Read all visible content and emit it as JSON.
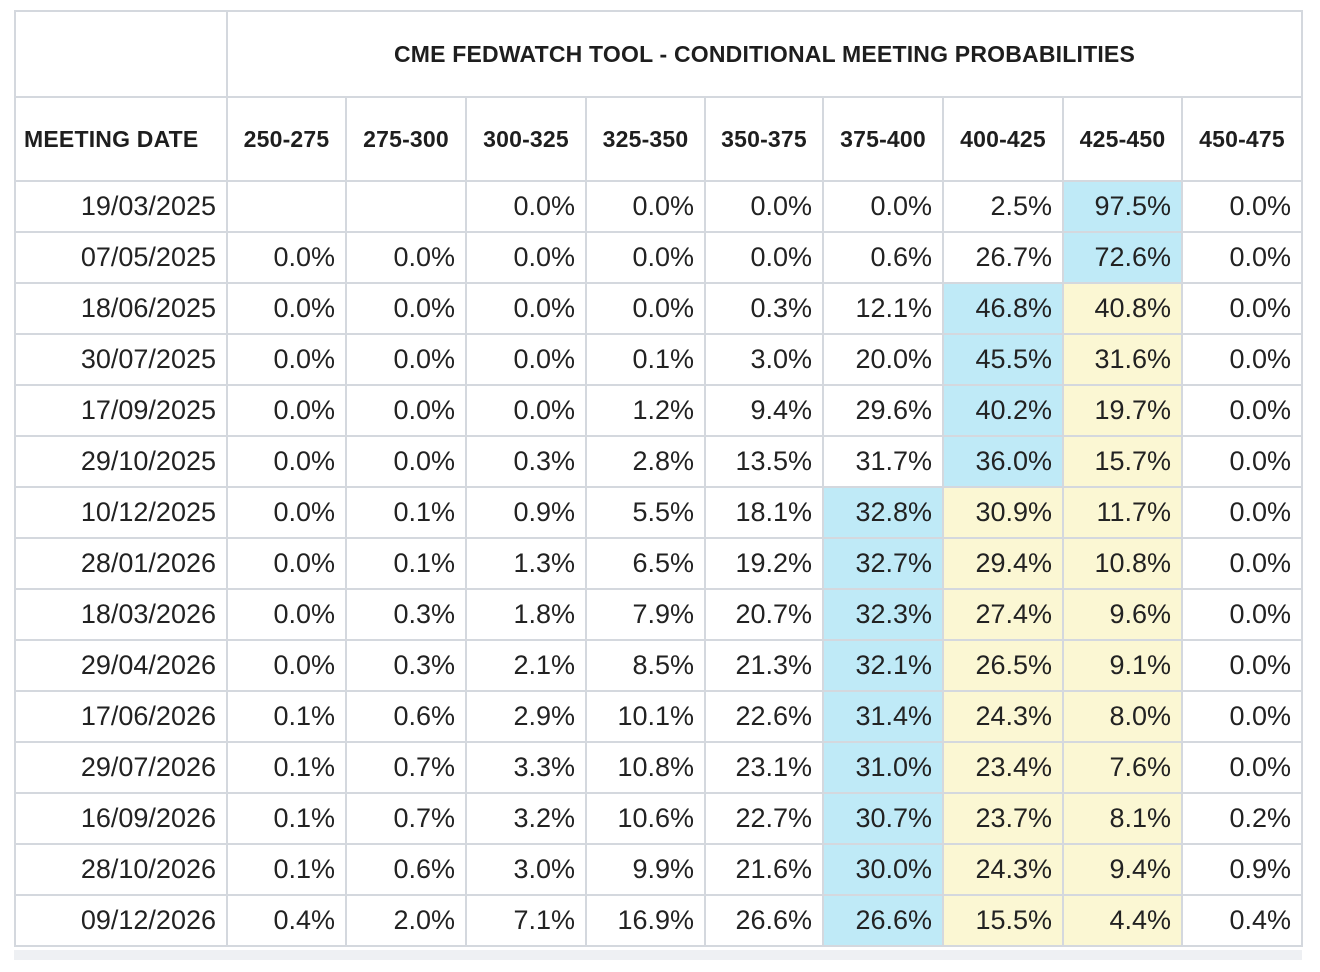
{
  "title": "CME FEDWATCH TOOL - CONDITIONAL MEETING PROBABILITIES",
  "date_header": "MEETING DATE",
  "ranges": [
    "250-275",
    "275-300",
    "300-325",
    "325-350",
    "350-375",
    "375-400",
    "400-425",
    "425-450",
    "450-475"
  ],
  "highlight_colors": {
    "blue": "#bfeaf7",
    "yellow": "#fbf7d3"
  },
  "rows": [
    {
      "date": "19/03/2025",
      "values": [
        "",
        "",
        "0.0%",
        "0.0%",
        "0.0%",
        "0.0%",
        "2.5%",
        "97.5%",
        "0.0%"
      ],
      "hl": [
        "",
        "",
        "",
        "",
        "",
        "",
        "",
        "blue",
        ""
      ]
    },
    {
      "date": "07/05/2025",
      "values": [
        "0.0%",
        "0.0%",
        "0.0%",
        "0.0%",
        "0.0%",
        "0.6%",
        "26.7%",
        "72.6%",
        "0.0%"
      ],
      "hl": [
        "",
        "",
        "",
        "",
        "",
        "",
        "",
        "blue",
        ""
      ]
    },
    {
      "date": "18/06/2025",
      "values": [
        "0.0%",
        "0.0%",
        "0.0%",
        "0.0%",
        "0.3%",
        "12.1%",
        "46.8%",
        "40.8%",
        "0.0%"
      ],
      "hl": [
        "",
        "",
        "",
        "",
        "",
        "",
        "blue",
        "yellow",
        ""
      ]
    },
    {
      "date": "30/07/2025",
      "values": [
        "0.0%",
        "0.0%",
        "0.0%",
        "0.1%",
        "3.0%",
        "20.0%",
        "45.5%",
        "31.6%",
        "0.0%"
      ],
      "hl": [
        "",
        "",
        "",
        "",
        "",
        "",
        "blue",
        "yellow",
        ""
      ]
    },
    {
      "date": "17/09/2025",
      "values": [
        "0.0%",
        "0.0%",
        "0.0%",
        "1.2%",
        "9.4%",
        "29.6%",
        "40.2%",
        "19.7%",
        "0.0%"
      ],
      "hl": [
        "",
        "",
        "",
        "",
        "",
        "",
        "blue",
        "yellow",
        ""
      ]
    },
    {
      "date": "29/10/2025",
      "values": [
        "0.0%",
        "0.0%",
        "0.3%",
        "2.8%",
        "13.5%",
        "31.7%",
        "36.0%",
        "15.7%",
        "0.0%"
      ],
      "hl": [
        "",
        "",
        "",
        "",
        "",
        "",
        "blue",
        "yellow",
        ""
      ]
    },
    {
      "date": "10/12/2025",
      "values": [
        "0.0%",
        "0.1%",
        "0.9%",
        "5.5%",
        "18.1%",
        "32.8%",
        "30.9%",
        "11.7%",
        "0.0%"
      ],
      "hl": [
        "",
        "",
        "",
        "",
        "",
        "blue",
        "yellow",
        "yellow",
        ""
      ]
    },
    {
      "date": "28/01/2026",
      "values": [
        "0.0%",
        "0.1%",
        "1.3%",
        "6.5%",
        "19.2%",
        "32.7%",
        "29.4%",
        "10.8%",
        "0.0%"
      ],
      "hl": [
        "",
        "",
        "",
        "",
        "",
        "blue",
        "yellow",
        "yellow",
        ""
      ]
    },
    {
      "date": "18/03/2026",
      "values": [
        "0.0%",
        "0.3%",
        "1.8%",
        "7.9%",
        "20.7%",
        "32.3%",
        "27.4%",
        "9.6%",
        "0.0%"
      ],
      "hl": [
        "",
        "",
        "",
        "",
        "",
        "blue",
        "yellow",
        "yellow",
        ""
      ]
    },
    {
      "date": "29/04/2026",
      "values": [
        "0.0%",
        "0.3%",
        "2.1%",
        "8.5%",
        "21.3%",
        "32.1%",
        "26.5%",
        "9.1%",
        "0.0%"
      ],
      "hl": [
        "",
        "",
        "",
        "",
        "",
        "blue",
        "yellow",
        "yellow",
        ""
      ]
    },
    {
      "date": "17/06/2026",
      "values": [
        "0.1%",
        "0.6%",
        "2.9%",
        "10.1%",
        "22.6%",
        "31.4%",
        "24.3%",
        "8.0%",
        "0.0%"
      ],
      "hl": [
        "",
        "",
        "",
        "",
        "",
        "blue",
        "yellow",
        "yellow",
        ""
      ]
    },
    {
      "date": "29/07/2026",
      "values": [
        "0.1%",
        "0.7%",
        "3.3%",
        "10.8%",
        "23.1%",
        "31.0%",
        "23.4%",
        "7.6%",
        "0.0%"
      ],
      "hl": [
        "",
        "",
        "",
        "",
        "",
        "blue",
        "yellow",
        "yellow",
        ""
      ]
    },
    {
      "date": "16/09/2026",
      "values": [
        "0.1%",
        "0.7%",
        "3.2%",
        "10.6%",
        "22.7%",
        "30.7%",
        "23.7%",
        "8.1%",
        "0.2%"
      ],
      "hl": [
        "",
        "",
        "",
        "",
        "",
        "blue",
        "yellow",
        "yellow",
        ""
      ]
    },
    {
      "date": "28/10/2026",
      "values": [
        "0.1%",
        "0.6%",
        "3.0%",
        "9.9%",
        "21.6%",
        "30.0%",
        "24.3%",
        "9.4%",
        "0.9%"
      ],
      "hl": [
        "",
        "",
        "",
        "",
        "",
        "blue",
        "yellow",
        "yellow",
        ""
      ]
    },
    {
      "date": "09/12/2026",
      "values": [
        "0.4%",
        "2.0%",
        "7.1%",
        "16.9%",
        "26.6%",
        "26.6%",
        "15.5%",
        "4.4%",
        "0.4%"
      ],
      "hl": [
        "",
        "",
        "",
        "",
        "",
        "blue",
        "yellow",
        "yellow",
        ""
      ]
    }
  ]
}
